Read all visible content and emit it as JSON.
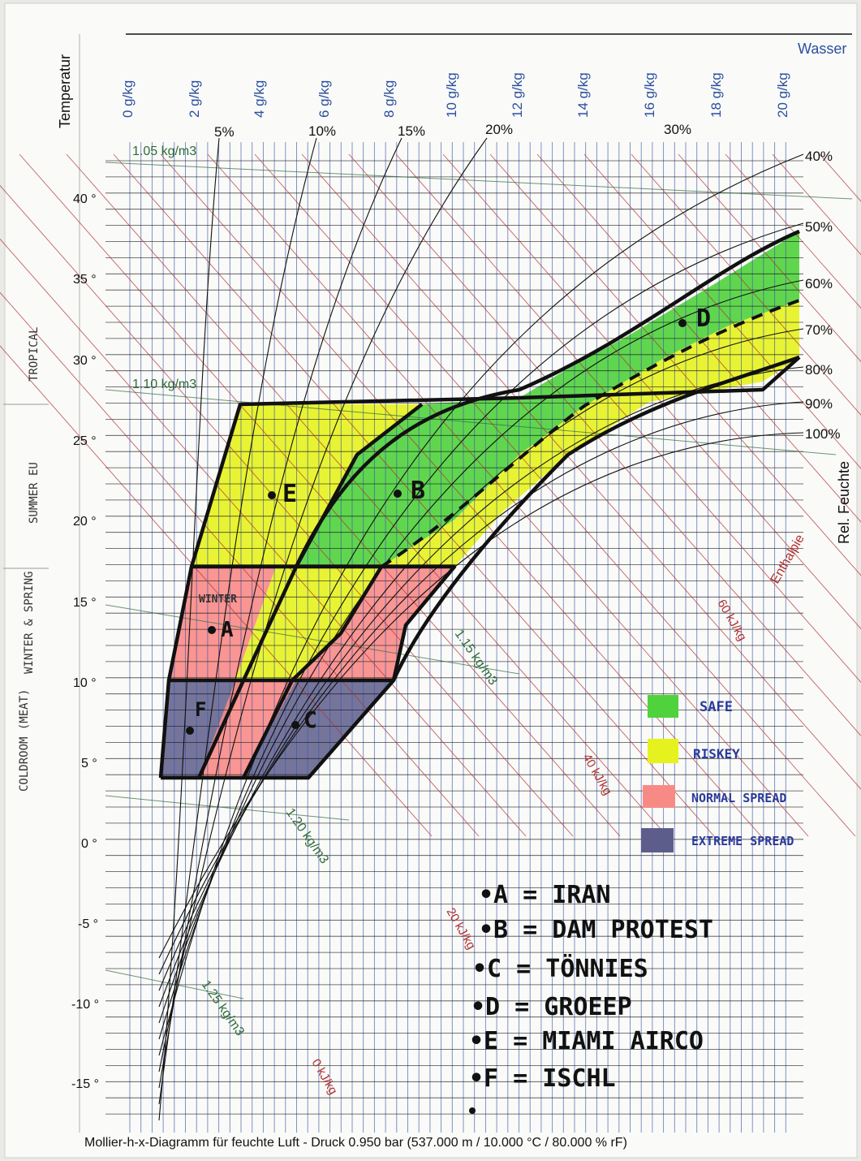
{
  "axis": {
    "temperature_label": "Temperatur",
    "water_label": "Wasser",
    "rel_humidity_label": "Rel. Feuchte",
    "enthalpy_label": "Enthalpie",
    "temperature_ticks": [
      "40 °",
      "35 °",
      "30 °",
      "25 °",
      "20 °",
      "15 °",
      "10 °",
      "5 °",
      "0 °",
      "-5 °",
      "-10 °",
      "-15 °"
    ],
    "water_ticks": [
      "0 g/kg",
      "2 g/kg",
      "4 g/kg",
      "6 g/kg",
      "8 g/kg",
      "10 g/kg",
      "12 g/kg",
      "14 g/kg",
      "16 g/kg",
      "18 g/kg",
      "20 g/kg"
    ],
    "rh_right_labels": [
      "40%",
      "50%",
      "60%",
      "70%",
      "80%",
      "90%",
      "100%"
    ],
    "rh_top_labels": [
      "5%",
      "10%",
      "15%",
      "20%",
      "30%"
    ],
    "density_labels": [
      "1.05 kg/m3",
      "1.10 kg/m3",
      "1.15 kg/m3",
      "1.20 kg/m3",
      "1.25 kg/m3"
    ],
    "enthalpy_ticks": [
      "0 kJ/kg",
      "20 kJ/kg",
      "40 kJ/kg",
      "60 kJ/kg"
    ]
  },
  "footer": "Mollier-h-x-Diagramm für feuchte Luft - Druck  0.950 bar (537.000 m / 10.000 °C / 80.000 % rF)",
  "annotations": {
    "side": [
      "TROPICAL",
      "SUMMER EU",
      "WINTER & SPRING",
      "COLDROOM (MEAT)"
    ],
    "winter": "WINTER",
    "points": [
      "A",
      "B",
      "C",
      "D",
      "E",
      "F"
    ],
    "legend": [
      {
        "label": "SAFE",
        "color": "#4fd23c"
      },
      {
        "label": "RISKEY",
        "color": "#e6f21e"
      },
      {
        "label": "NORMAL SPREAD",
        "color": "#f88a86"
      },
      {
        "label": "EXTREME SPREAD",
        "color": "#5d5d8c"
      }
    ],
    "key": [
      "•A = IRAN",
      "•B = DAM PROTEST",
      "•C = TÖNNIES",
      "•D = GROEEP",
      "•E = MIAMI AIRCO",
      "•F = ISCHL"
    ]
  }
}
